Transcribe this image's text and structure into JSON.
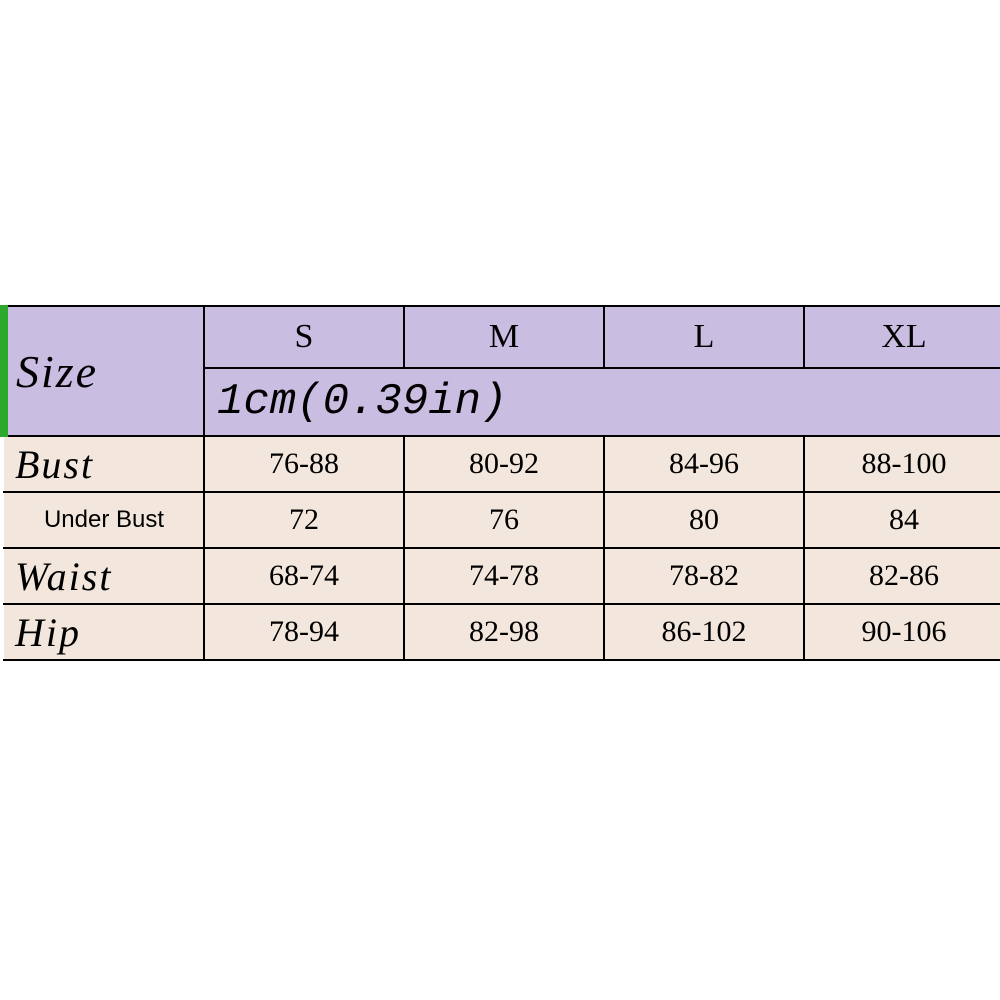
{
  "table": {
    "type": "table",
    "header_label": "Size",
    "unit_note": "1cm(0.39in)",
    "colors": {
      "accent_border": "#2ca82c",
      "header_bg": "#c9bde2",
      "body_bg": "#f3e7dd",
      "border": "#000000",
      "text": "#000000",
      "outer_bg": "#ffffff"
    },
    "font": {
      "header_italic_size_pt": 46,
      "size_label_size_pt": 34,
      "unit_size_pt": 44,
      "body_label_size_pt": 40,
      "body_label_small_pt": 24,
      "body_value_size_pt": 30
    },
    "columns": [
      "S",
      "M",
      "L",
      "XL"
    ],
    "rows": [
      {
        "label": "Bust",
        "small": false,
        "values": [
          "76-88",
          "80-92",
          "84-96",
          "88-100"
        ]
      },
      {
        "label": "Under Bust",
        "small": true,
        "values": [
          "72",
          "76",
          "80",
          "84"
        ]
      },
      {
        "label": "Waist",
        "small": false,
        "values": [
          "68-74",
          "74-78",
          "78-82",
          "82-86"
        ]
      },
      {
        "label": "Hip",
        "small": false,
        "values": [
          "78-94",
          "82-98",
          "86-102",
          "90-106"
        ]
      }
    ]
  }
}
